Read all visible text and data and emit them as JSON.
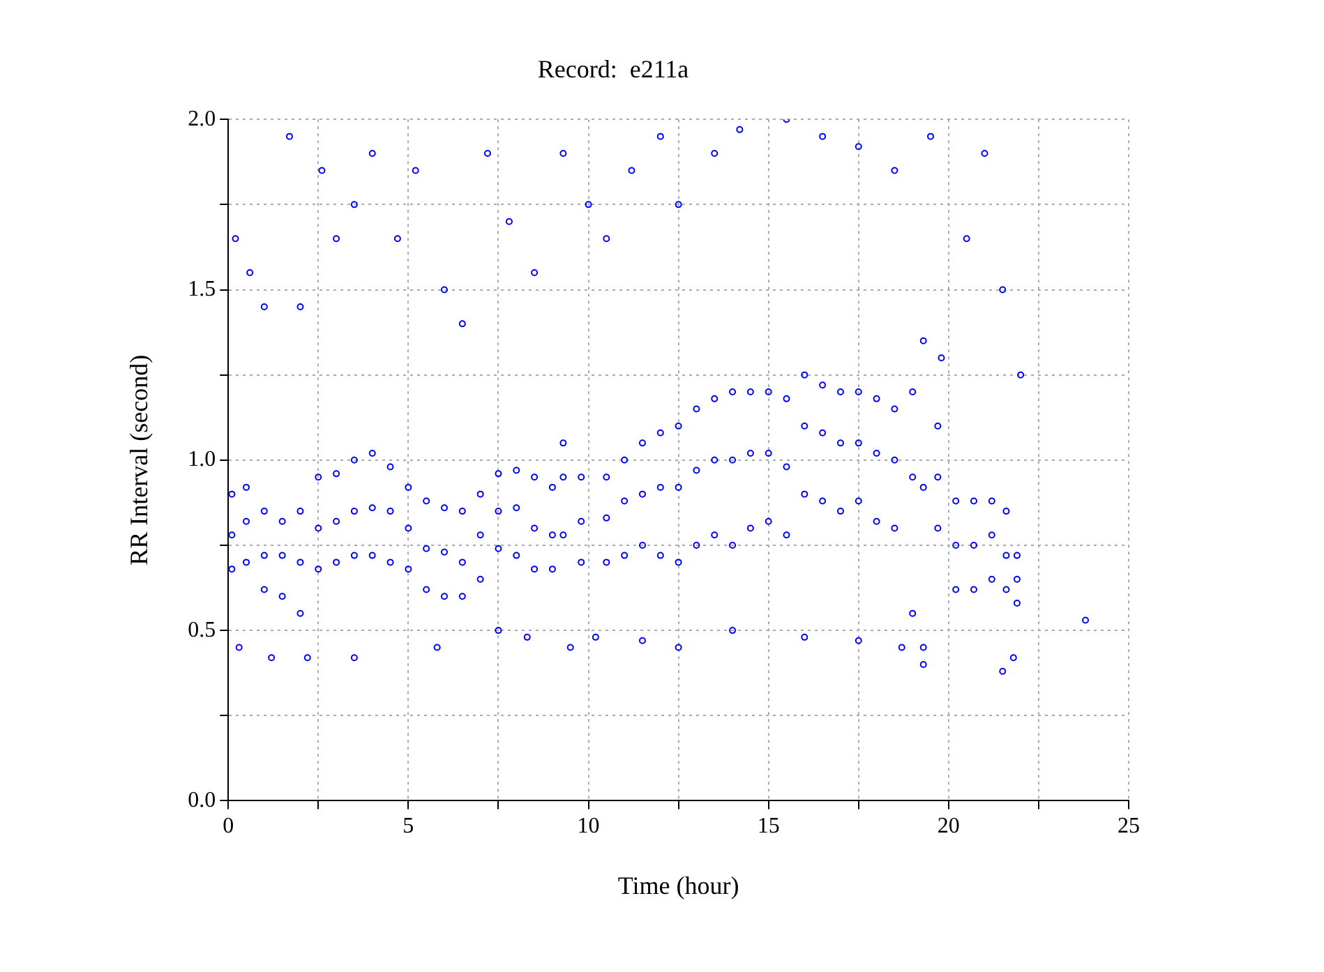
{
  "chart_data": {
    "type": "scatter",
    "title": "Record:  e211a",
    "xlabel": "Time (hour)",
    "ylabel": "RR Interval (second)",
    "color": "#0000ff",
    "marker": "circle",
    "grid": true,
    "xlim": [
      0,
      25
    ],
    "ylim": [
      0,
      2
    ],
    "xticks": [
      0,
      {
        "value": 2.5,
        "label": null
      },
      5,
      {
        "value": 7.5,
        "label": null
      },
      10,
      {
        "value": 12.5,
        "label": null
      },
      15,
      {
        "value": 17.5,
        "label": null
      },
      20,
      {
        "value": 22.5,
        "label": null
      },
      25
    ],
    "yticks": [
      "0.0",
      {
        "value": 0.25,
        "label": null
      },
      {
        "value": 0.5,
        "label": "0.5"
      },
      {
        "value": 0.75,
        "label": null
      },
      {
        "value": 1,
        "label": "1.0"
      },
      {
        "value": 1.25,
        "label": null
      },
      {
        "value": 1.5,
        "label": "1.5"
      },
      {
        "value": 1.75,
        "label": null
      },
      {
        "value": 2,
        "label": "2.0"
      }
    ],
    "x": [
      0.1,
      0.1,
      0.1,
      0.5,
      0.5,
      0.5,
      1.0,
      1.0,
      1.0,
      1.5,
      1.5,
      1.5,
      2.0,
      2.0,
      2.0,
      2.5,
      2.5,
      2.5,
      3.0,
      3.0,
      3.0,
      3.5,
      3.5,
      3.5,
      4.0,
      4.0,
      4.0,
      4.5,
      4.5,
      4.5,
      5.0,
      5.0,
      5.0,
      5.5,
      5.5,
      5.5,
      6.0,
      6.0,
      6.0,
      6.5,
      6.5,
      6.5,
      7.0,
      7.0,
      7.0,
      7.5,
      7.5,
      7.5,
      8.0,
      8.0,
      8.0,
      8.5,
      8.5,
      8.5,
      9.0,
      9.0,
      9.0,
      9.3,
      9.3,
      9.3,
      9.8,
      9.8,
      9.8,
      10.5,
      10.5,
      10.5,
      11.0,
      11.0,
      11.0,
      11.5,
      11.5,
      11.5,
      12.0,
      12.0,
      12.0,
      12.5,
      12.5,
      12.5,
      13.0,
      13.0,
      13.0,
      13.5,
      13.5,
      13.5,
      14.0,
      14.0,
      14.0,
      14.5,
      14.5,
      14.5,
      15.0,
      15.0,
      15.0,
      15.5,
      15.5,
      15.5,
      16.0,
      16.0,
      16.0,
      16.5,
      16.5,
      16.5,
      17.0,
      17.0,
      17.0,
      17.5,
      17.5,
      17.5,
      18.0,
      18.0,
      18.0,
      18.5,
      18.5,
      18.5,
      19.0,
      19.0,
      19.0,
      19.3,
      19.3,
      19.3,
      19.7,
      19.7,
      19.7,
      20.2,
      20.2,
      20.2,
      20.7,
      20.7,
      20.7,
      21.2,
      21.2,
      21.2,
      21.6,
      21.6,
      21.6,
      21.9,
      21.9,
      21.9,
      23.8,
      0.2,
      0.6,
      1.0,
      1.7,
      2.0,
      2.6,
      3.0,
      3.5,
      4.0,
      4.7,
      5.2,
      6.0,
      6.5,
      7.2,
      7.8,
      8.5,
      9.3,
      10.0,
      10.5,
      11.2,
      12.0,
      12.5,
      13.5,
      14.2,
      15.5,
      16.5,
      17.5,
      18.5,
      19.5,
      20.5,
      21.0,
      21.5,
      22.0,
      19.8,
      0.3,
      1.2,
      2.2,
      3.5,
      5.8,
      7.5,
      8.3,
      9.5,
      10.2,
      11.5,
      12.5,
      14.0,
      16.0,
      17.5,
      18.7,
      19.3,
      21.5,
      21.8
    ],
    "values": [
      0.78,
      0.68,
      0.9,
      0.82,
      0.7,
      0.92,
      0.72,
      0.62,
      0.85,
      0.72,
      0.6,
      0.82,
      0.7,
      0.55,
      0.85,
      0.8,
      0.68,
      0.95,
      0.82,
      0.7,
      0.96,
      0.85,
      0.72,
      1.0,
      0.86,
      0.72,
      1.02,
      0.85,
      0.7,
      0.98,
      0.8,
      0.68,
      0.92,
      0.74,
      0.62,
      0.88,
      0.73,
      0.6,
      0.86,
      0.7,
      0.6,
      0.85,
      0.78,
      0.65,
      0.9,
      0.85,
      0.74,
      0.96,
      0.86,
      0.72,
      0.97,
      0.8,
      0.68,
      0.95,
      0.78,
      0.68,
      0.92,
      0.95,
      0.78,
      1.05,
      0.82,
      0.7,
      0.95,
      0.83,
      0.7,
      0.95,
      0.88,
      0.72,
      1.0,
      0.9,
      0.75,
      1.05,
      0.92,
      0.72,
      1.08,
      0.92,
      0.7,
      1.1,
      0.97,
      0.75,
      1.15,
      1.0,
      0.78,
      1.18,
      1.0,
      0.75,
      1.2,
      1.02,
      0.8,
      1.2,
      1.02,
      0.82,
      1.2,
      0.98,
      0.78,
      1.18,
      1.1,
      0.9,
      1.25,
      1.08,
      0.88,
      1.22,
      1.05,
      0.85,
      1.2,
      1.05,
      0.88,
      1.2,
      1.02,
      0.82,
      1.18,
      1.0,
      0.8,
      1.15,
      0.95,
      0.55,
      1.2,
      0.92,
      0.45,
      1.35,
      0.95,
      0.8,
      1.1,
      0.75,
      0.62,
      0.88,
      0.75,
      0.62,
      0.88,
      0.78,
      0.65,
      0.88,
      0.72,
      0.62,
      0.85,
      0.65,
      0.58,
      0.72,
      0.53,
      1.65,
      1.55,
      1.45,
      1.95,
      1.45,
      1.85,
      1.65,
      1.75,
      1.9,
      1.65,
      1.85,
      1.5,
      1.4,
      1.9,
      1.7,
      1.55,
      1.9,
      1.75,
      1.65,
      1.85,
      1.95,
      1.75,
      1.9,
      1.97,
      2.0,
      1.95,
      1.92,
      1.85,
      1.95,
      1.65,
      1.9,
      1.5,
      1.25,
      1.3,
      0.45,
      0.42,
      0.42,
      0.42,
      0.45,
      0.5,
      0.48,
      0.45,
      0.48,
      0.47,
      0.45,
      0.5,
      0.48,
      0.47,
      0.45,
      0.4,
      0.38,
      0.42
    ]
  }
}
